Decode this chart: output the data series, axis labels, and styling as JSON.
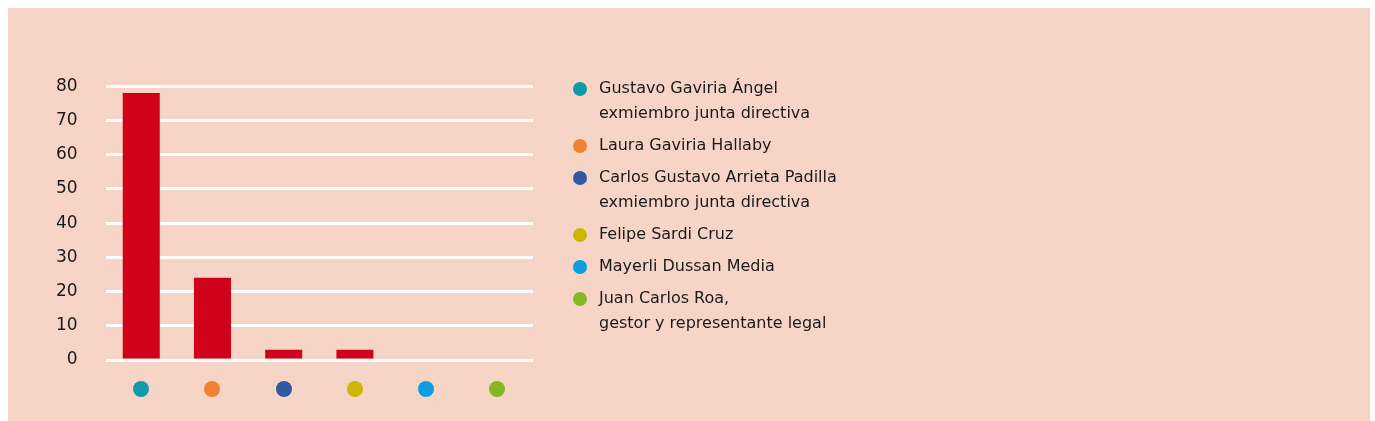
{
  "chart_data": {
    "type": "bar",
    "categories": [
      null,
      null,
      null,
      null,
      null,
      null
    ],
    "values": [
      78,
      24,
      3,
      3,
      0,
      0
    ],
    "color": "#d0021b",
    "ylim": [
      0,
      80
    ],
    "yticks": [
      0,
      10,
      20,
      30,
      40,
      50,
      60,
      70,
      80
    ],
    "grid": "y",
    "annotations": [
      "Gustavo Gaviria Ángel\nexmiembro junta directiva",
      "Laura Gaviria Hallaby",
      "Carlos Gustavo Arrieta Padilla\nexmiembro junta directiva",
      "Felipe Sardi Cruz",
      "Mayerli Dussan Media",
      "Juan Carlos Roa,\ngestor y representante legal"
    ]
  }
}
